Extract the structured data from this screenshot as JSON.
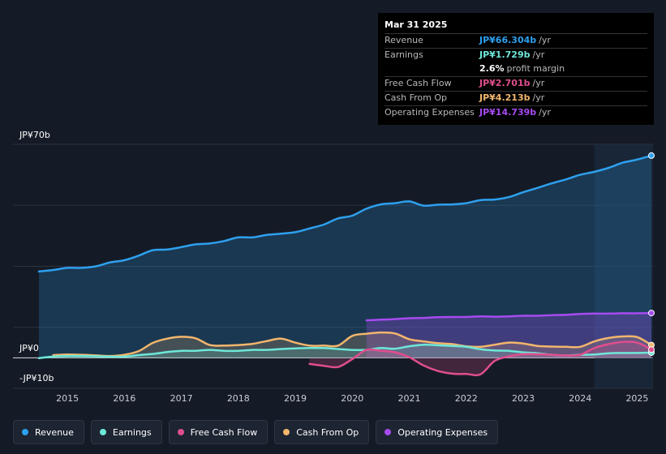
{
  "tooltip": {
    "date": "Mar 31 2025",
    "rows": [
      {
        "label": "Revenue",
        "value": "JP¥66.304b",
        "unit": "/yr",
        "color": "#2ea0ef"
      },
      {
        "label": "Earnings",
        "value": "JP¥1.729b",
        "unit": "/yr",
        "color": "#6ee7d8"
      },
      {
        "label": "",
        "value": "2.6%",
        "unit": "profit margin",
        "color": "#ffffff"
      },
      {
        "label": "Free Cash Flow",
        "value": "JP¥2.701b",
        "unit": "/yr",
        "color": "#e04e8e"
      },
      {
        "label": "Cash From Op",
        "value": "JP¥4.213b",
        "unit": "/yr",
        "color": "#f2b66d"
      },
      {
        "label": "Operating Expenses",
        "value": "JP¥14.739b",
        "unit": "/yr",
        "color": "#a64bf0"
      }
    ]
  },
  "legend": [
    {
      "label": "Revenue",
      "color": "#2ea0ef"
    },
    {
      "label": "Earnings",
      "color": "#6ee7d8"
    },
    {
      "label": "Free Cash Flow",
      "color": "#e04e8e"
    },
    {
      "label": "Cash From Op",
      "color": "#f2b66d"
    },
    {
      "label": "Operating Expenses",
      "color": "#a64bf0"
    }
  ],
  "chart_data": {
    "type": "line",
    "title": "",
    "xlabel": "",
    "ylabel": "",
    "xlim": [
      2014.5,
      2025.25
    ],
    "ylim": [
      -10,
      70
    ],
    "y_labels": [
      "JP¥70b",
      "JP¥0",
      "-JP¥10b"
    ],
    "x_ticks": [
      "2015",
      "2016",
      "2017",
      "2018",
      "2019",
      "2020",
      "2021",
      "2022",
      "2023",
      "2024",
      "2025"
    ],
    "highlight_start": 2024.25,
    "series": [
      {
        "name": "Revenue",
        "color": "#2ea0ef",
        "area": true,
        "x": [
          2014.5,
          2014.75,
          2015,
          2015.25,
          2015.5,
          2015.75,
          2016,
          2016.25,
          2016.5,
          2016.75,
          2017,
          2017.25,
          2017.5,
          2017.75,
          2018,
          2018.25,
          2018.5,
          2018.75,
          2019,
          2019.25,
          2019.5,
          2019.75,
          2020,
          2020.25,
          2020.5,
          2020.75,
          2021,
          2021.25,
          2021.5,
          2021.75,
          2022,
          2022.25,
          2022.5,
          2022.75,
          2023,
          2023.25,
          2023.5,
          2023.75,
          2024,
          2024.25,
          2024.5,
          2024.75,
          2025,
          2025.25
        ],
        "values": [
          28.3,
          28.8,
          29.5,
          29.5,
          30,
          31.3,
          32,
          33.5,
          35.3,
          35.5,
          36.3,
          37.2,
          37.5,
          38.3,
          39.5,
          39.5,
          40.3,
          40.7,
          41.2,
          42.4,
          43.7,
          45.7,
          46.6,
          48.9,
          50.3,
          50.7,
          51.3,
          49.9,
          50.2,
          50.3,
          50.7,
          51.7,
          51.9,
          52.7,
          54.3,
          55.7,
          57.2,
          58.5,
          60,
          61,
          62.3,
          64,
          65,
          66.3
        ]
      },
      {
        "name": "Operating Expenses",
        "color": "#a64bf0",
        "area": true,
        "x": [
          2020.25,
          2020.5,
          2020.75,
          2021,
          2021.25,
          2021.5,
          2021.75,
          2022,
          2022.25,
          2022.5,
          2022.75,
          2023,
          2023.25,
          2023.5,
          2023.75,
          2024,
          2024.25,
          2024.5,
          2024.75,
          2025,
          2025.25
        ],
        "values": [
          12.3,
          12.5,
          12.7,
          13,
          13.1,
          13.3,
          13.4,
          13.4,
          13.6,
          13.5,
          13.6,
          13.8,
          13.8,
          14,
          14.1,
          14.4,
          14.5,
          14.5,
          14.6,
          14.6,
          14.7
        ]
      },
      {
        "name": "Cash From Op",
        "color": "#f2b66d",
        "area": true,
        "x": [
          2014.75,
          2015,
          2015.25,
          2015.5,
          2015.75,
          2016,
          2016.25,
          2016.5,
          2016.75,
          2017,
          2017.25,
          2017.5,
          2017.75,
          2018,
          2018.25,
          2018.5,
          2018.75,
          2019,
          2019.25,
          2019.5,
          2019.75,
          2020,
          2020.25,
          2020.5,
          2020.75,
          2021,
          2021.25,
          2021.5,
          2021.75,
          2022,
          2022.25,
          2022.5,
          2022.75,
          2023,
          2023.25,
          2023.5,
          2023.75,
          2024,
          2024.25,
          2024.5,
          2024.75,
          2025,
          2025.25
        ],
        "values": [
          0.9,
          1.1,
          1,
          0.8,
          0.6,
          1,
          2.2,
          4.9,
          6.3,
          6.9,
          6.4,
          4.2,
          4,
          4.2,
          4.6,
          5.5,
          6.3,
          5,
          4,
          4,
          4,
          7.2,
          7.9,
          8.3,
          8,
          6.1,
          5.4,
          4.8,
          4.5,
          3.8,
          3.6,
          4.3,
          5,
          4.7,
          3.9,
          3.7,
          3.6,
          3.6,
          5.4,
          6.5,
          7,
          6.8,
          4.2
        ]
      },
      {
        "name": "Earnings",
        "color": "#6ee7d8",
        "area": true,
        "x": [
          2014.5,
          2014.75,
          2015,
          2015.25,
          2015.5,
          2015.75,
          2016,
          2016.25,
          2016.5,
          2016.75,
          2017,
          2017.25,
          2017.5,
          2017.75,
          2018,
          2018.25,
          2018.5,
          2018.75,
          2019,
          2019.25,
          2019.5,
          2019.75,
          2020,
          2020.25,
          2020.5,
          2020.75,
          2021,
          2021.25,
          2021.5,
          2021.75,
          2022,
          2022.25,
          2022.5,
          2022.75,
          2023,
          2023.25,
          2023.5,
          2023.75,
          2024,
          2024.25,
          2024.5,
          2024.75,
          2025,
          2025.25
        ],
        "values": [
          -0.1,
          0.4,
          0.6,
          0.6,
          0.5,
          0.4,
          0.4,
          0.9,
          1.3,
          1.9,
          2.3,
          2.3,
          2.6,
          2.3,
          2.3,
          2.6,
          2.6,
          2.9,
          3.1,
          3.2,
          3.2,
          2.9,
          2.6,
          2.6,
          3.2,
          3,
          3.8,
          4.3,
          4.1,
          3.9,
          3.6,
          2.8,
          2.4,
          2.3,
          1.8,
          1.5,
          1,
          0.8,
          1,
          1.1,
          1.5,
          1.6,
          1.6,
          1.7
        ]
      },
      {
        "name": "Free Cash Flow",
        "color": "#e04e8e",
        "area": true,
        "x": [
          2019.25,
          2019.5,
          2019.75,
          2020,
          2020.25,
          2020.5,
          2020.75,
          2021,
          2021.25,
          2021.5,
          2021.75,
          2022,
          2022.25,
          2022.5,
          2022.75,
          2023,
          2023.25,
          2023.5,
          2023.75,
          2024,
          2024.25,
          2024.5,
          2024.75,
          2025,
          2025.25
        ],
        "values": [
          -2,
          -2.6,
          -3,
          -0.4,
          2.6,
          2.3,
          1.8,
          0.2,
          -2.5,
          -4.3,
          -5.2,
          -5.3,
          -5.4,
          -1,
          0.5,
          1.2,
          1.2,
          1,
          0.8,
          1,
          3.2,
          4.5,
          5.2,
          5,
          2.7
        ]
      }
    ]
  }
}
